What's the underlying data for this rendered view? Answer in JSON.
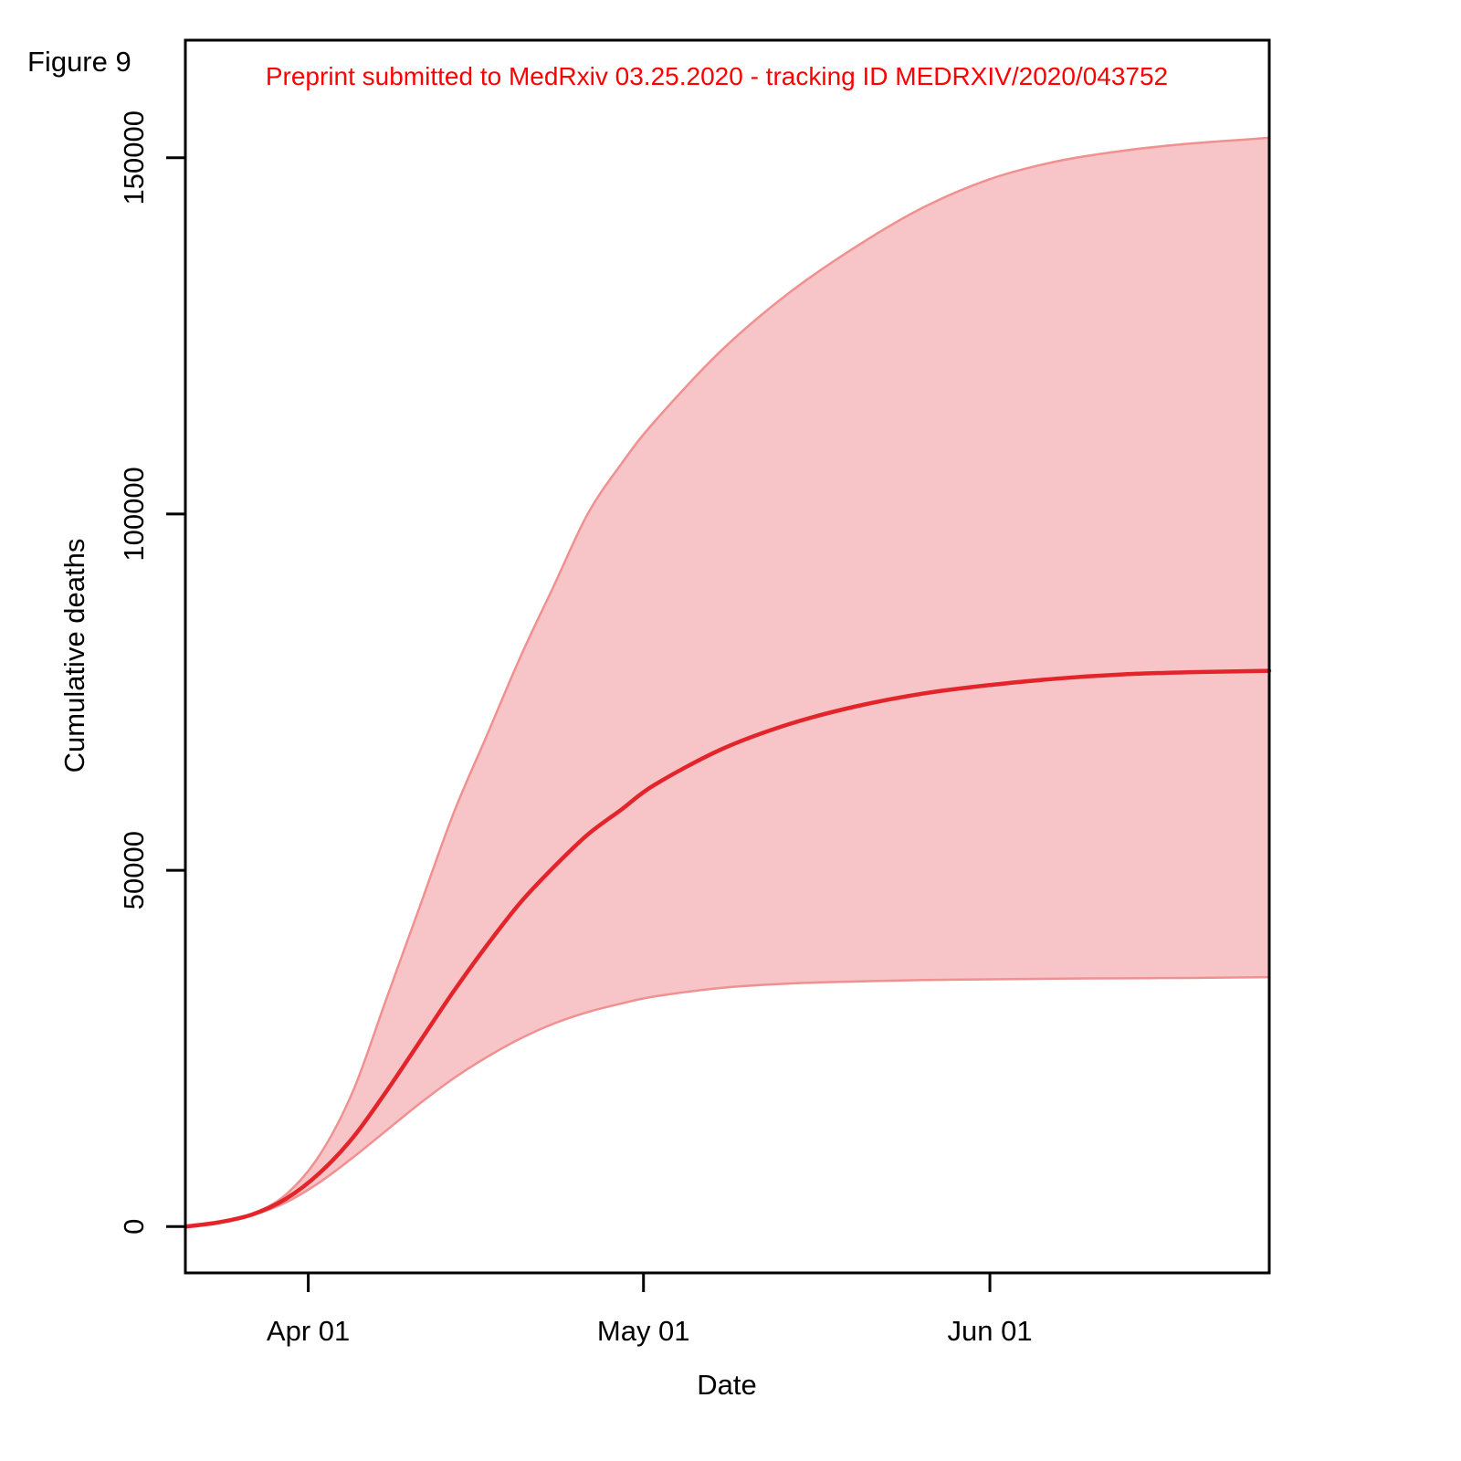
{
  "figure_label": "Figure 9",
  "annotation": "Preprint submitted to MedRxiv 03.25.2020 - tracking ID MEDRXIV/2020/043752",
  "colors": {
    "band_fill": "#f7c5c7",
    "band_edge": "#f09090",
    "median_line": "#e3242b",
    "annotation": "#ff0000"
  },
  "chart_data": {
    "type": "area",
    "xlabel": "Date",
    "ylabel": "Cumulative deaths",
    "xlim": [
      "2020-03-21",
      "2020-06-26"
    ],
    "ylim": [
      -6500,
      166500
    ],
    "x_ticks": [
      {
        "value": "2020-04-01",
        "label": "Apr 01"
      },
      {
        "value": "2020-05-01",
        "label": "May 01"
      },
      {
        "value": "2020-06-01",
        "label": "Jun 01"
      }
    ],
    "y_ticks": [
      {
        "value": 0,
        "label": "0"
      },
      {
        "value": 50000,
        "label": "50000"
      },
      {
        "value": 100000,
        "label": "100000"
      },
      {
        "value": 150000,
        "label": "150000"
      }
    ],
    "grid": false,
    "legend": "none",
    "x": [
      "2020-03-21",
      "2020-03-24",
      "2020-03-27",
      "2020-03-30",
      "2020-04-02",
      "2020-04-05",
      "2020-04-08",
      "2020-04-11",
      "2020-04-14",
      "2020-04-17",
      "2020-04-20",
      "2020-04-23",
      "2020-04-26",
      "2020-04-29",
      "2020-05-02",
      "2020-05-08",
      "2020-05-14",
      "2020-05-20",
      "2020-05-26",
      "2020-06-01",
      "2020-06-07",
      "2020-06-13",
      "2020-06-19",
      "2020-06-26"
    ],
    "series": [
      {
        "role": "upper",
        "values": [
          0,
          600,
          1800,
          4500,
          10000,
          19000,
          32000,
          45000,
          58000,
          69000,
          80000,
          90000,
          100000,
          107000,
          113000,
          123000,
          131000,
          137500,
          143000,
          147000,
          149500,
          151000,
          152000,
          152800
        ]
      },
      {
        "role": "median",
        "values": [
          0,
          600,
          1700,
          3900,
          7500,
          12500,
          19000,
          26000,
          33000,
          39500,
          45500,
          50500,
          55000,
          58500,
          62000,
          67000,
          70500,
          73000,
          74800,
          76000,
          76900,
          77500,
          77800,
          78000
        ]
      },
      {
        "role": "lower",
        "values": [
          0,
          600,
          1600,
          3400,
          6200,
          9700,
          13500,
          17300,
          20800,
          23800,
          26400,
          28500,
          30100,
          31300,
          32300,
          33500,
          34100,
          34400,
          34600,
          34700,
          34800,
          34850,
          34900,
          35000
        ]
      }
    ]
  }
}
